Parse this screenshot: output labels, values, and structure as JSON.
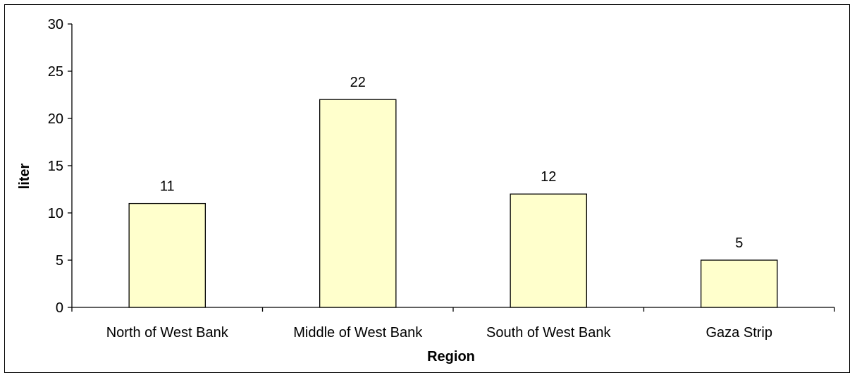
{
  "chart_data": {
    "type": "bar",
    "title": "",
    "xlabel": "Region",
    "ylabel": "liter",
    "categories": [
      "North of West Bank",
      "Middle of West Bank",
      "South of West Bank",
      "Gaza Strip"
    ],
    "values": [
      11,
      22,
      12,
      5
    ],
    "data_labels": [
      "11",
      "22",
      "12",
      "5"
    ],
    "yticks": [
      "0",
      "5",
      "10",
      "15",
      "20",
      "25",
      "30"
    ],
    "ylim": [
      0,
      30
    ],
    "grid": false,
    "legend": "none",
    "colors": {
      "bar_fill": "#FFFFCC",
      "bar_stroke": "#000000",
      "axis": "#000000"
    }
  }
}
